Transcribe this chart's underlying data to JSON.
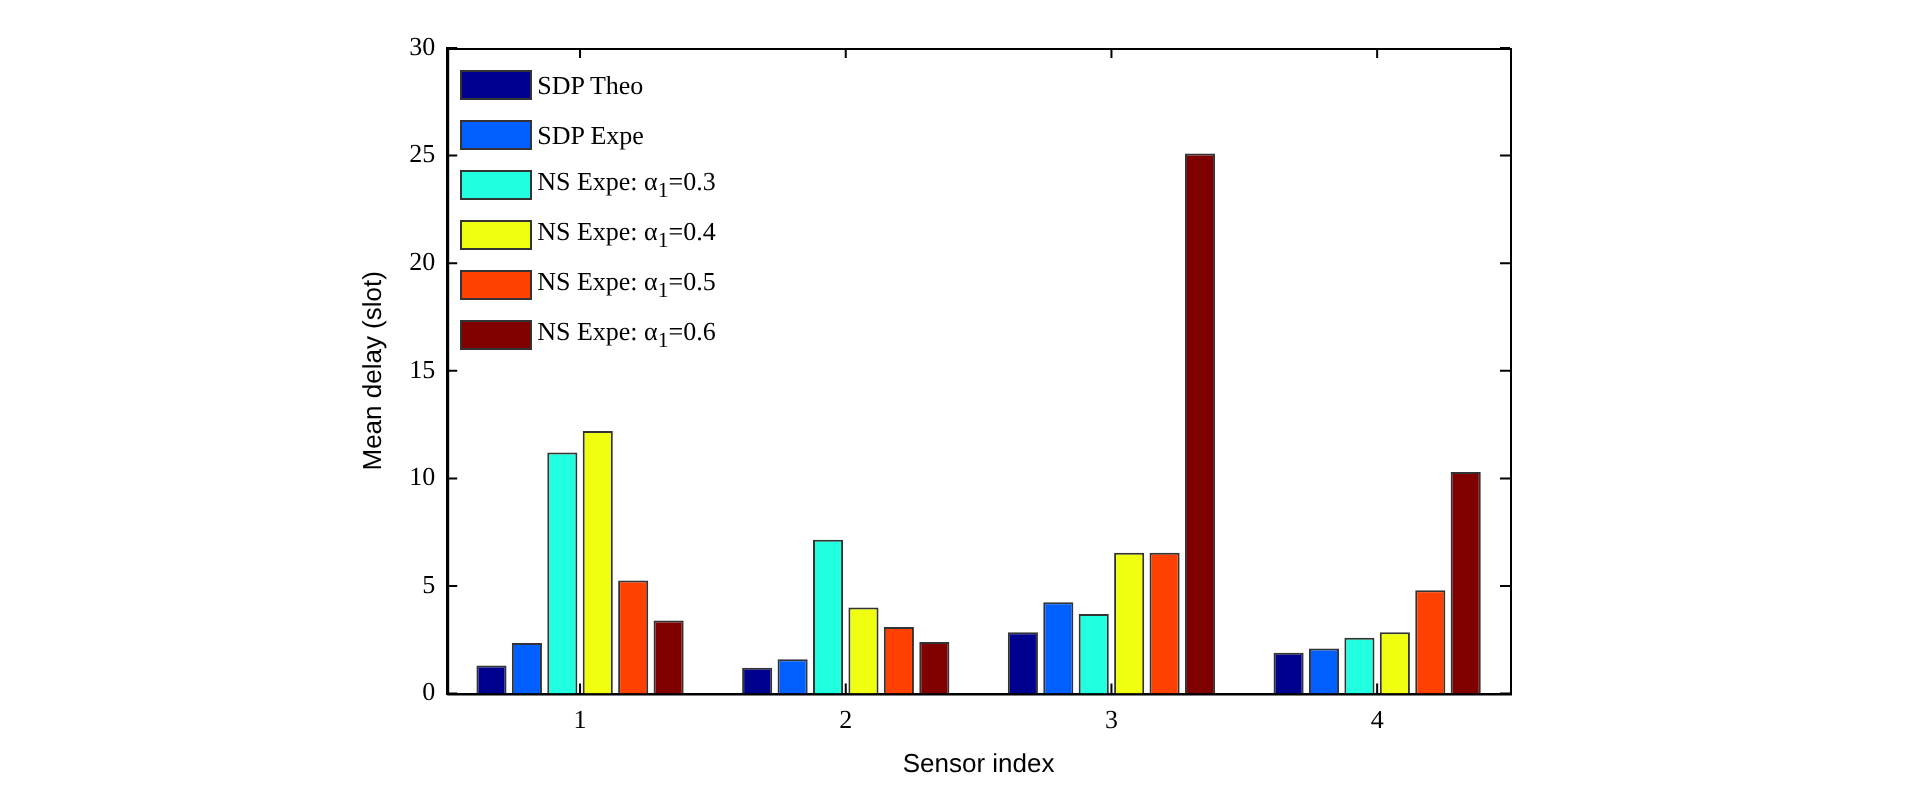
{
  "chart_data": {
    "type": "bar",
    "xlabel": "Sensor index",
    "ylabel": "Mean delay (slot)",
    "categories": [
      "1",
      "2",
      "3",
      "4"
    ],
    "series": [
      {
        "name": "SDP Theo",
        "color": "#00008f",
        "values": [
          1.3,
          1.2,
          2.85,
          1.9
        ]
      },
      {
        "name": "SDP Expe",
        "color": "#0060ff",
        "values": [
          2.35,
          1.6,
          4.25,
          2.1
        ]
      },
      {
        "name": "NS Expe: α$_{1}$=0.3",
        "color": "#20ffdf",
        "values": [
          11.2,
          7.15,
          3.7,
          2.6
        ]
      },
      {
        "name": "NS Expe: α$_{1}$=0.4",
        "color": "#f0ff10",
        "values": [
          12.2,
          4.0,
          6.55,
          2.85
        ]
      },
      {
        "name": "NS Expe: α$_{1}$=0.5",
        "color": "#ff4000",
        "values": [
          5.25,
          3.1,
          6.55,
          4.8
        ]
      },
      {
        "name": "NS Expe: α$_{1}$=0.6",
        "color": "#800000",
        "values": [
          3.4,
          2.4,
          25.1,
          10.3
        ]
      }
    ],
    "ylim": [
      0,
      30
    ],
    "yticks": [
      0,
      5,
      10,
      15,
      20,
      25,
      30
    ],
    "grid": false,
    "legend": "top left"
  }
}
